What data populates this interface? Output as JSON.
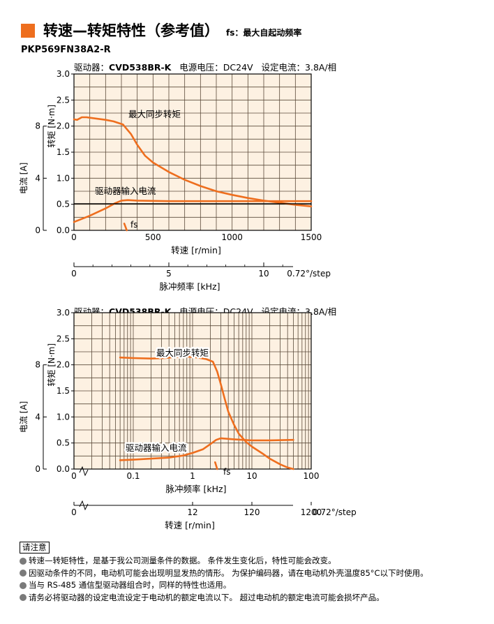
{
  "header": {
    "title": "转速—转矩特性（参考值）",
    "subtitle": "fs：最大自起动频率",
    "accent_color": "#ee6e1e"
  },
  "model": "PKP569FN38A2-R",
  "chart_data": [
    {
      "type": "line",
      "info": {
        "driver_label": "驱动器：",
        "driver": "CVD538BR-K",
        "voltage": "电源电压：DC24V",
        "current": "设定电流：3.8A/相"
      },
      "xlabel": "转速 [r/min]",
      "x2label": "脉冲频率 [kHz]",
      "x2_note": "0.72°/step",
      "ylabel": "转矩 [N·m]",
      "y2label": "电流 [A]",
      "xlim": [
        0,
        1500
      ],
      "ylim": [
        0,
        3.0
      ],
      "y2lim": [
        0,
        12
      ],
      "x_ticks": [
        0,
        500,
        1000,
        1500
      ],
      "x2_ticks": [
        0,
        5,
        10
      ],
      "y_ticks": [
        0,
        0.5,
        1.0,
        1.5,
        2.0,
        2.5,
        3.0
      ],
      "y2_ticks": [
        0,
        4,
        8
      ],
      "grid": true,
      "line_color": "#ee6e1e",
      "series": [
        {
          "name": "最大同步转矩",
          "x": [
            0,
            20,
            50,
            80,
            150,
            200,
            250,
            310,
            360,
            400,
            450,
            500,
            600,
            700,
            800,
            900,
            1000,
            1100,
            1200,
            1300,
            1400,
            1500
          ],
          "y": [
            2.13,
            2.12,
            2.17,
            2.17,
            2.14,
            2.12,
            2.09,
            2.03,
            1.85,
            1.64,
            1.43,
            1.3,
            1.12,
            0.97,
            0.85,
            0.75,
            0.68,
            0.62,
            0.57,
            0.53,
            0.49,
            0.46
          ]
        },
        {
          "name": "驱动器输入电流",
          "x": [
            0,
            100,
            200,
            260,
            300,
            340,
            400,
            600,
            800,
            1000,
            1200,
            1500
          ],
          "y": [
            0.16,
            0.28,
            0.42,
            0.52,
            0.57,
            0.58,
            0.57,
            0.56,
            0.56,
            0.56,
            0.56,
            0.56
          ]
        },
        {
          "name": "fs",
          "x": [
            318,
            334
          ],
          "y": [
            0.13,
            0.0
          ]
        }
      ],
      "flat_line": {
        "y": 0.51
      }
    },
    {
      "type": "line",
      "info": {
        "driver_label": "驱动器：",
        "driver": "CVD538BR-K",
        "voltage": "电源电压：DC24V",
        "current": "设定电流：3.8A/相"
      },
      "xlabel": "脉冲频率 [kHz]",
      "x2label": "转速 [r/min]",
      "x2_note": "0.72°/step",
      "ylabel": "转矩 [N·m]",
      "y2label": "电流 [A]",
      "x_scale": "log",
      "xlim": [
        0.01,
        100
      ],
      "ylim": [
        0,
        3.0
      ],
      "y2lim": [
        0,
        12
      ],
      "x_ticks": [
        0.1,
        1,
        10,
        100
      ],
      "x2_ticks": [
        0,
        12,
        120,
        1200
      ],
      "y_ticks": [
        0,
        0.5,
        1.0,
        1.5,
        2.0,
        2.5,
        3.0
      ],
      "y2_ticks": [
        0,
        4,
        8
      ],
      "grid": true,
      "line_color": "#ee6e1e",
      "series": [
        {
          "name": "最大同步转矩",
          "x": [
            0.06,
            0.1,
            0.2,
            0.35,
            0.5,
            0.8,
            1.2,
            1.7,
            2.2,
            2.6,
            3.0,
            3.5,
            4.0,
            5.0,
            6.0,
            8.0,
            10,
            15,
            20,
            30,
            40,
            50
          ],
          "y": [
            2.14,
            2.13,
            2.12,
            2.13,
            2.15,
            2.16,
            2.14,
            2.11,
            2.06,
            1.87,
            1.62,
            1.34,
            1.1,
            0.85,
            0.68,
            0.52,
            0.43,
            0.3,
            0.2,
            0.09,
            0.03,
            0.0
          ]
        },
        {
          "name": "驱动器输入电流",
          "x": [
            0.06,
            0.1,
            0.2,
            0.4,
            0.7,
            1.0,
            1.5,
            2.0,
            2.5,
            3.0,
            5.0,
            10,
            20,
            50
          ],
          "y": [
            0.17,
            0.18,
            0.2,
            0.22,
            0.26,
            0.31,
            0.38,
            0.48,
            0.56,
            0.59,
            0.57,
            0.55,
            0.55,
            0.56
          ]
        },
        {
          "name": "fs",
          "x": [
            2.4,
            2.6
          ],
          "y": [
            0.13,
            0.0
          ]
        }
      ]
    }
  ],
  "notes": {
    "title": "请注意",
    "items": [
      "转速—转矩特性，是基于我公司测量条件的数据。 条件发生变化后，特性可能会改变。",
      "因驱动条件的不同，电动机可能会出现明显发热的情形。 为保护编码器，请在电动机外壳温度85°C以下时使用。",
      "当与 RS-485 通信型驱动器组合时，同样的特性也适用。",
      "请务必将驱动器的设定电流设定于电动机的额定电流以下。 超过电动机的额定电流可能会损坏产品。"
    ]
  }
}
